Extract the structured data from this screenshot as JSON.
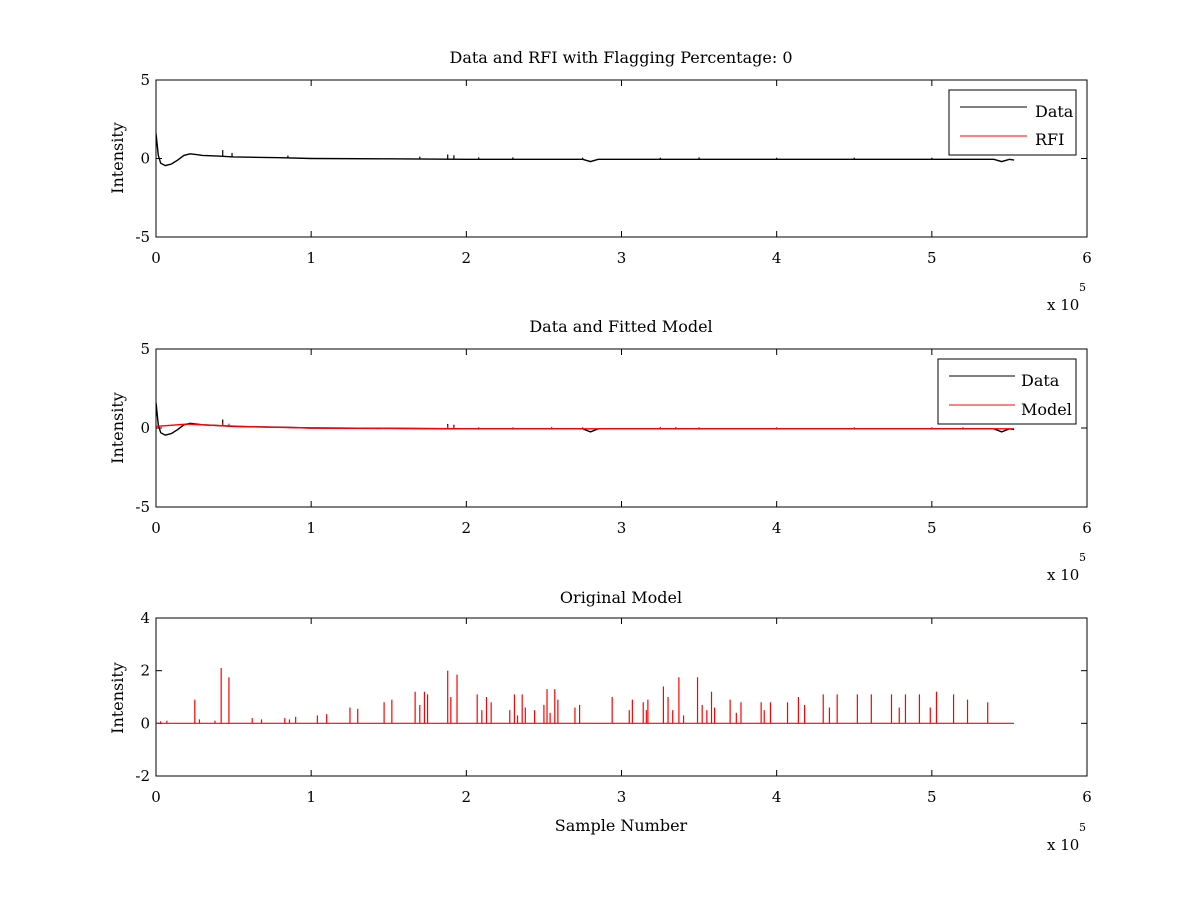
{
  "chart_data": [
    {
      "type": "line",
      "title": "Data and RFI with Flagging Percentage: 0",
      "xlabel": "",
      "ylabel": "Intensity",
      "xlim": [
        0,
        600000
      ],
      "ylim": [
        -5,
        5
      ],
      "xticks": [
        0,
        1,
        2,
        3,
        4,
        5,
        6
      ],
      "yticks": [
        -5,
        0,
        5
      ],
      "x_exponent": {
        "base": "x 10",
        "power": "5"
      },
      "legend": {
        "placement": "top-right",
        "entries": [
          "Data",
          "RFI"
        ]
      },
      "grid": false,
      "series": [
        {
          "name": "Data",
          "color": "#000000",
          "points": [
            [
              0,
              1.6
            ],
            [
              1500,
              0.2
            ],
            [
              3000,
              -0.3
            ],
            [
              6000,
              -0.45
            ],
            [
              10000,
              -0.35
            ],
            [
              14000,
              -0.1
            ],
            [
              18000,
              0.2
            ],
            [
              22000,
              0.3
            ],
            [
              26000,
              0.25
            ],
            [
              30000,
              0.2
            ],
            [
              40000,
              0.15
            ],
            [
              50000,
              0.1
            ],
            [
              60000,
              0.08
            ],
            [
              80000,
              0.05
            ],
            [
              100000,
              0.0
            ],
            [
              150000,
              -0.02
            ],
            [
              200000,
              -0.05
            ],
            [
              250000,
              -0.05
            ],
            [
              275000,
              -0.05
            ],
            [
              280000,
              -0.2
            ],
            [
              285000,
              -0.05
            ],
            [
              300000,
              -0.05
            ],
            [
              400000,
              -0.05
            ],
            [
              500000,
              -0.05
            ],
            [
              540000,
              -0.05
            ],
            [
              545000,
              -0.2
            ],
            [
              550000,
              -0.05
            ],
            [
              553000,
              -0.1
            ]
          ],
          "spikes": [
            [
              43000,
              0.4
            ],
            [
              49000,
              0.25
            ],
            [
              85000,
              0.15
            ],
            [
              170000,
              0.15
            ],
            [
              188000,
              0.3
            ],
            [
              192000,
              0.25
            ],
            [
              208000,
              0.12
            ],
            [
              230000,
              0.12
            ],
            [
              275000,
              0.1
            ],
            [
              325000,
              0.1
            ],
            [
              350000,
              0.12
            ],
            [
              400000,
              0.1
            ],
            [
              450000,
              0.1
            ],
            [
              500000,
              0.1
            ]
          ]
        },
        {
          "name": "RFI",
          "color": "#ff0000",
          "points": []
        }
      ]
    },
    {
      "type": "line",
      "title": "Data and Fitted Model",
      "xlabel": "",
      "ylabel": "Intensity",
      "xlim": [
        0,
        600000
      ],
      "ylim": [
        -5,
        5
      ],
      "xticks": [
        0,
        1,
        2,
        3,
        4,
        5,
        6
      ],
      "yticks": [
        -5,
        0,
        5
      ],
      "x_exponent": {
        "base": "x 10",
        "power": "5"
      },
      "legend": {
        "placement": "top-right",
        "entries": [
          "Data",
          "Model"
        ]
      },
      "grid": false,
      "series": [
        {
          "name": "Data",
          "color": "#000000",
          "points": [
            [
              0,
              1.6
            ],
            [
              1500,
              0.2
            ],
            [
              3000,
              -0.3
            ],
            [
              6000,
              -0.45
            ],
            [
              10000,
              -0.35
            ],
            [
              14000,
              -0.1
            ],
            [
              18000,
              0.2
            ],
            [
              22000,
              0.3
            ],
            [
              26000,
              0.25
            ],
            [
              30000,
              0.2
            ],
            [
              40000,
              0.15
            ],
            [
              50000,
              0.1
            ],
            [
              60000,
              0.08
            ],
            [
              80000,
              0.05
            ],
            [
              100000,
              0.0
            ],
            [
              150000,
              -0.02
            ],
            [
              200000,
              -0.05
            ],
            [
              250000,
              -0.05
            ],
            [
              275000,
              -0.05
            ],
            [
              280000,
              -0.25
            ],
            [
              285000,
              -0.05
            ],
            [
              300000,
              -0.05
            ],
            [
              400000,
              -0.05
            ],
            [
              500000,
              -0.05
            ],
            [
              540000,
              -0.05
            ],
            [
              545000,
              -0.25
            ],
            [
              550000,
              -0.05
            ],
            [
              553000,
              -0.1
            ]
          ],
          "spikes": [
            [
              43000,
              0.4
            ],
            [
              188000,
              0.3
            ],
            [
              192000,
              0.25
            ]
          ]
        },
        {
          "name": "Model",
          "color": "#ff0000",
          "points": [
            [
              0,
              0.1
            ],
            [
              20000,
              0.25
            ],
            [
              40000,
              0.15
            ],
            [
              60000,
              0.08
            ],
            [
              100000,
              0.0
            ],
            [
              200000,
              -0.05
            ],
            [
              300000,
              -0.05
            ],
            [
              400000,
              -0.05
            ],
            [
              500000,
              -0.05
            ],
            [
              553000,
              -0.05
            ]
          ],
          "spikes": [
            [
              25000,
              0.1
            ],
            [
              43000,
              0.2
            ],
            [
              47000,
              0.15
            ],
            [
              188000,
              0.2
            ],
            [
              192000,
              0.15
            ],
            [
              208000,
              0.1
            ],
            [
              230000,
              0.1
            ],
            [
              255000,
              0.12
            ],
            [
              275000,
              0.1
            ],
            [
              325000,
              0.12
            ],
            [
              335000,
              0.12
            ],
            [
              350000,
              0.1
            ],
            [
              400000,
              0.1
            ],
            [
              450000,
              0.1
            ],
            [
              500000,
              0.1
            ],
            [
              520000,
              0.1
            ]
          ]
        }
      ]
    },
    {
      "type": "line",
      "title": "Original Model",
      "xlabel": "Sample Number",
      "ylabel": "Intensity",
      "xlim": [
        0,
        600000
      ],
      "ylim": [
        -2,
        4
      ],
      "xticks": [
        0,
        1,
        2,
        3,
        4,
        5,
        6
      ],
      "yticks": [
        -2,
        0,
        2,
        4
      ],
      "x_exponent": {
        "base": "x 10",
        "power": "5"
      },
      "grid": false,
      "series": [
        {
          "name": "",
          "color": "#ff0000",
          "baseline": [
            0,
            553000
          ],
          "spikes": [
            [
              3000,
              0.08
            ],
            [
              7000,
              0.1
            ],
            [
              25000,
              0.9
            ],
            [
              28000,
              0.15
            ],
            [
              38000,
              0.1
            ],
            [
              42000,
              2.1
            ],
            [
              47000,
              1.75
            ],
            [
              62000,
              0.2
            ],
            [
              68000,
              0.15
            ],
            [
              83000,
              0.2
            ],
            [
              86000,
              0.15
            ],
            [
              90000,
              0.25
            ],
            [
              104000,
              0.3
            ],
            [
              110000,
              0.35
            ],
            [
              125000,
              0.6
            ],
            [
              130000,
              0.55
            ],
            [
              147000,
              0.8
            ],
            [
              152000,
              0.9
            ],
            [
              167000,
              1.2
            ],
            [
              170000,
              0.7
            ],
            [
              173000,
              1.2
            ],
            [
              175000,
              1.1
            ],
            [
              188000,
              2.0
            ],
            [
              190000,
              1.0
            ],
            [
              194000,
              1.85
            ],
            [
              207000,
              1.1
            ],
            [
              210000,
              0.5
            ],
            [
              213000,
              1.0
            ],
            [
              216000,
              0.8
            ],
            [
              228000,
              0.5
            ],
            [
              231000,
              1.1
            ],
            [
              233000,
              0.3
            ],
            [
              236000,
              1.1
            ],
            [
              238000,
              0.6
            ],
            [
              244000,
              0.5
            ],
            [
              250000,
              0.7
            ],
            [
              252000,
              1.3
            ],
            [
              254000,
              0.4
            ],
            [
              257000,
              1.3
            ],
            [
              259000,
              0.9
            ],
            [
              270000,
              0.6
            ],
            [
              273000,
              0.7
            ],
            [
              294000,
              1.0
            ],
            [
              305000,
              0.5
            ],
            [
              307000,
              0.9
            ],
            [
              314000,
              0.8
            ],
            [
              316000,
              0.5
            ],
            [
              317000,
              0.9
            ],
            [
              327000,
              1.4
            ],
            [
              330000,
              1.0
            ],
            [
              333000,
              0.5
            ],
            [
              337000,
              1.75
            ],
            [
              340000,
              0.3
            ],
            [
              349000,
              1.75
            ],
            [
              352000,
              0.7
            ],
            [
              355000,
              0.5
            ],
            [
              358000,
              1.2
            ],
            [
              360000,
              0.6
            ],
            [
              370000,
              0.9
            ],
            [
              374000,
              0.4
            ],
            [
              377000,
              0.8
            ],
            [
              390000,
              0.8
            ],
            [
              392000,
              0.5
            ],
            [
              396000,
              0.8
            ],
            [
              407000,
              0.8
            ],
            [
              414000,
              1.0
            ],
            [
              418000,
              0.7
            ],
            [
              430000,
              1.1
            ],
            [
              434000,
              0.6
            ],
            [
              439000,
              1.1
            ],
            [
              452000,
              1.1
            ],
            [
              461000,
              1.1
            ],
            [
              474000,
              1.1
            ],
            [
              479000,
              0.6
            ],
            [
              483000,
              1.1
            ],
            [
              492000,
              1.1
            ],
            [
              499000,
              0.6
            ],
            [
              503000,
              1.2
            ],
            [
              514000,
              1.1
            ],
            [
              523000,
              0.9
            ],
            [
              536000,
              0.8
            ]
          ]
        }
      ]
    }
  ]
}
